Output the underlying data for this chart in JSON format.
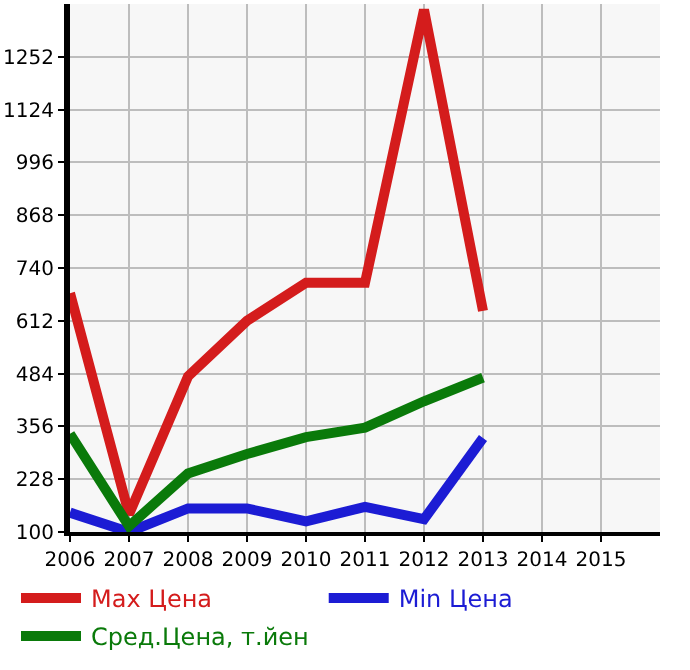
{
  "chart_data": {
    "type": "line",
    "x": [
      2006,
      2007,
      2008,
      2009,
      2010,
      2011,
      2012,
      2013
    ],
    "series": [
      {
        "name": "Max Цена",
        "color": "#d41c1c",
        "values": [
          679,
          143,
          477,
          612,
          704,
          704,
          1366,
          636
        ]
      },
      {
        "name": "Min Цена",
        "color": "#1c1cd4",
        "values": [
          147,
          100,
          157,
          157,
          126,
          161,
          131,
          328
        ]
      },
      {
        "name": "Сред.Цена, т.йен",
        "color": "#0a7a0a",
        "values": [
          338,
          114,
          242,
          289,
          330,
          353,
          417,
          474
        ]
      }
    ],
    "xlim": [
      2006,
      2016
    ],
    "xticks": [
      2006,
      2007,
      2008,
      2009,
      2010,
      2011,
      2012,
      2013,
      2014,
      2015
    ],
    "ylim": [
      100,
      1380
    ],
    "yticks": [
      100,
      228,
      356,
      484,
      612,
      740,
      868,
      996,
      1124,
      1252
    ],
    "grid": true,
    "legend": "bottom",
    "marker": "none",
    "line_style": "solid"
  }
}
